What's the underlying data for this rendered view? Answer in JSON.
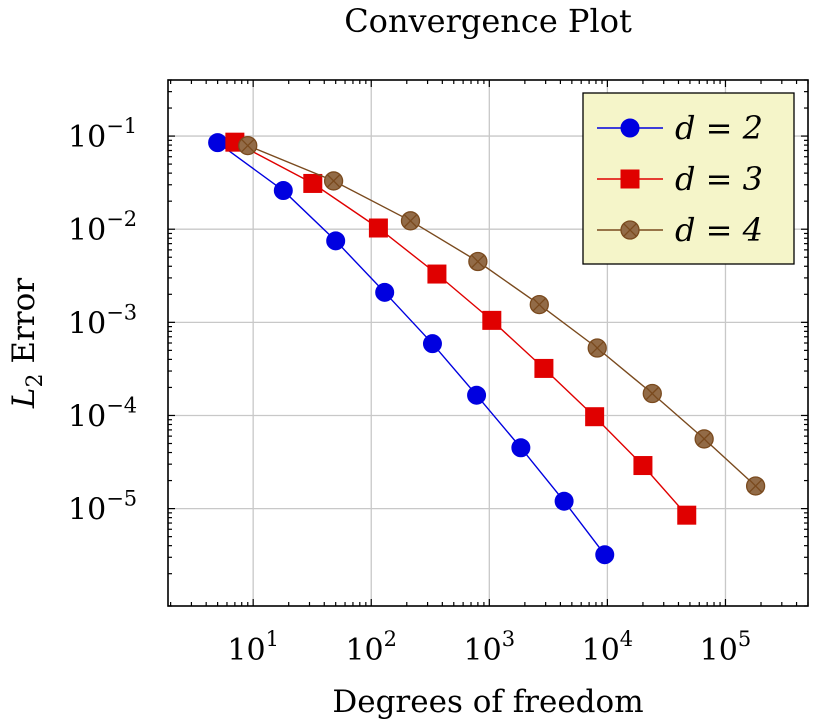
{
  "chart_data": {
    "type": "line",
    "title": "Convergence Plot",
    "xlabel": "Degrees of freedom",
    "ylabel": "L2 Error",
    "xscale": "log",
    "yscale": "log",
    "xlim": [
      1.9,
      500000
    ],
    "ylim": [
      9e-07,
      0.4
    ],
    "grid": true,
    "legend_position": "top-right",
    "x_ticks": [
      {
        "value": 10,
        "label": "10^1"
      },
      {
        "value": 100,
        "label": "10^2"
      },
      {
        "value": 1000,
        "label": "10^3"
      },
      {
        "value": 10000,
        "label": "10^4"
      },
      {
        "value": 100000,
        "label": "10^5"
      }
    ],
    "y_ticks": [
      {
        "value": 1e-05,
        "label": "10^-5"
      },
      {
        "value": 0.0001,
        "label": "10^-4"
      },
      {
        "value": 0.001,
        "label": "10^-3"
      },
      {
        "value": 0.01,
        "label": "10^-2"
      },
      {
        "value": 0.1,
        "label": "10^-1"
      }
    ],
    "series": [
      {
        "name": "d = 2",
        "color": "#0000e0",
        "marker": "circle",
        "x": [
          5,
          18,
          50,
          130,
          330,
          780,
          1850,
          4300,
          9500
        ],
        "y": [
          0.085,
          0.026,
          0.0075,
          0.0021,
          0.00059,
          0.000165,
          4.5e-05,
          1.2e-05,
          3.2e-06
        ]
      },
      {
        "name": "d = 3",
        "color": "#e00000",
        "marker": "square",
        "x": [
          7,
          32,
          115,
          360,
          1050,
          2900,
          7800,
          20000,
          47000
        ],
        "y": [
          0.086,
          0.031,
          0.0103,
          0.0033,
          0.00105,
          0.00032,
          9.7e-05,
          2.9e-05,
          8.5e-06
        ]
      },
      {
        "name": "d = 4",
        "color": "#7a4a1e",
        "marker": "otimes",
        "x": [
          9,
          48,
          215,
          800,
          2650,
          8200,
          24000,
          66000,
          180000
        ],
        "y": [
          0.079,
          0.033,
          0.0123,
          0.0045,
          0.00155,
          0.00053,
          0.000172,
          5.6e-05,
          1.75e-05
        ]
      }
    ]
  }
}
